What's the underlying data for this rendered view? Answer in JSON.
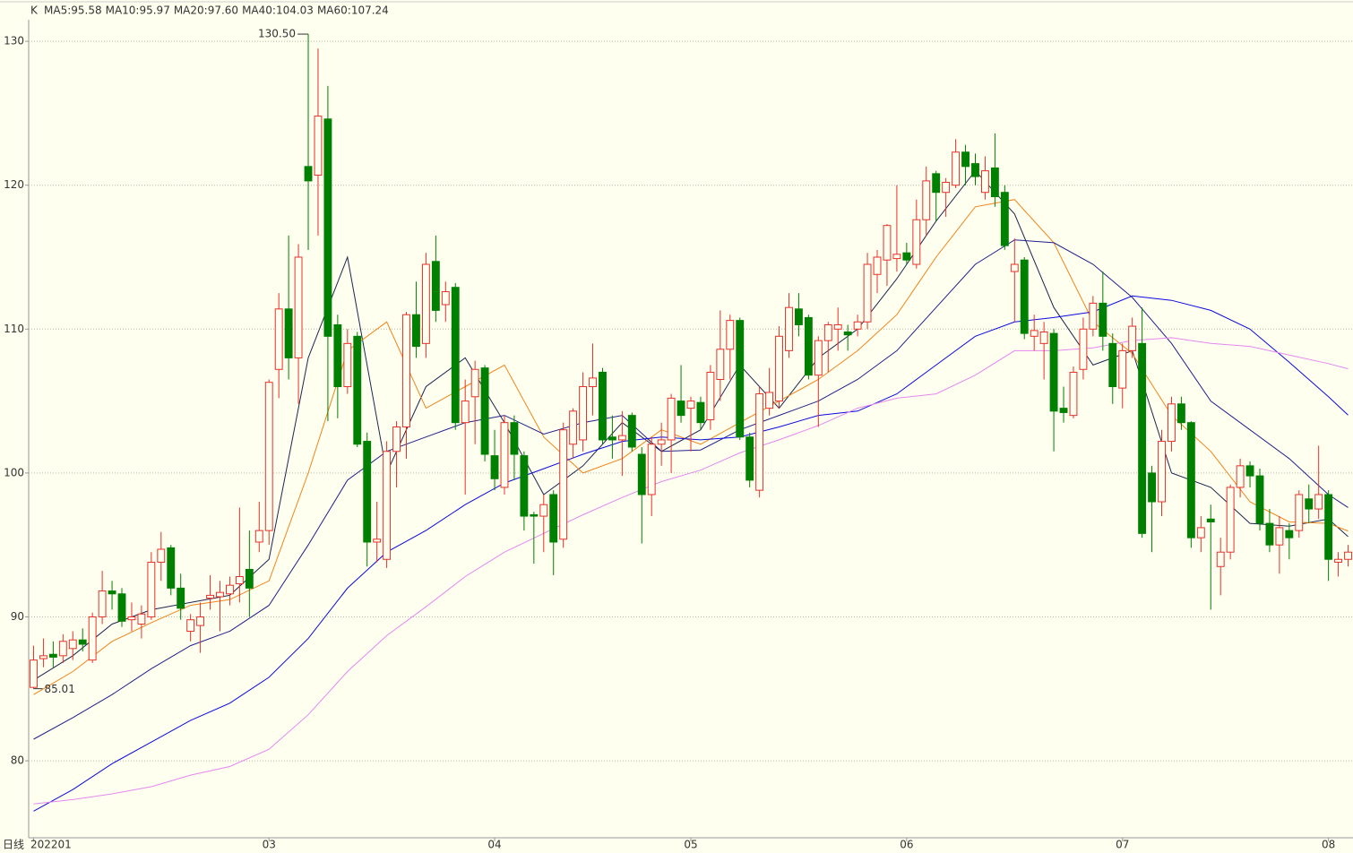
{
  "chart_data": {
    "type": "candlestick",
    "indicator_label": "K",
    "period_label": "日线",
    "up_color": "#e8302a",
    "down_color": "#008000",
    "ylim": [
      74.65,
      131.5
    ],
    "yticks": [
      80,
      90,
      100,
      110,
      120,
      130
    ],
    "grid": true,
    "xlim": [
      -0.5,
      134.5
    ],
    "xticks": [
      {
        "value": 0,
        "label": "202201"
      },
      {
        "value": 24,
        "label": "03"
      },
      {
        "value": 47,
        "label": "04"
      },
      {
        "value": 67,
        "label": "05"
      },
      {
        "value": 89,
        "label": "06"
      },
      {
        "value": 111,
        "label": "07"
      },
      {
        "value": 132,
        "label": "08"
      }
    ],
    "candles": [
      [
        85.1,
        88,
        85.01,
        87.0
      ],
      [
        87.1,
        88.5,
        86.5,
        87.3
      ],
      [
        87.4,
        88.3,
        86.5,
        87.2
      ],
      [
        87.3,
        88.8,
        86.8,
        88.3
      ],
      [
        87.8,
        89.0,
        87.0,
        88.4
      ],
      [
        88.4,
        89.2,
        87.6,
        88.1
      ],
      [
        87.0,
        90.3,
        86.8,
        90.0
      ],
      [
        90.0,
        93.2,
        89.5,
        91.8
      ],
      [
        91.8,
        92.5,
        90.5,
        91.6
      ],
      [
        91.6,
        92.0,
        89.3,
        89.7
      ],
      [
        89.8,
        91.0,
        89.0,
        90.0
      ],
      [
        89.5,
        90.8,
        88.5,
        90.2
      ],
      [
        90.0,
        94.5,
        89.8,
        93.8
      ],
      [
        93.8,
        95.9,
        92.5,
        94.7
      ],
      [
        94.8,
        95.0,
        91.5,
        92.0
      ],
      [
        92.0,
        93.0,
        89.8,
        90.6
      ],
      [
        89.0,
        90.2,
        88.3,
        89.8
      ],
      [
        89.4,
        91.0,
        87.5,
        90.0
      ],
      [
        91.3,
        92.9,
        90.5,
        91.5
      ],
      [
        91.4,
        92.5,
        89.0,
        91.7
      ],
      [
        91.6,
        92.8,
        90.8,
        92.2
      ],
      [
        92.3,
        97.6,
        91.0,
        92.8
      ],
      [
        93.3,
        96.0,
        90.0,
        92.0
      ],
      [
        95.2,
        98.0,
        94.5,
        96.0
      ],
      [
        96.0,
        106.5,
        95.0,
        106.3
      ],
      [
        107.2,
        112.5,
        105.2,
        111.4
      ],
      [
        111.4,
        116.5,
        106.5,
        108.0
      ],
      [
        108.0,
        115.9,
        104.8,
        115.0
      ],
      [
        121.3,
        130.5,
        115.5,
        120.3
      ],
      [
        120.7,
        129.5,
        116.5,
        124.8
      ],
      [
        124.6,
        126.9,
        103.6,
        109.5
      ],
      [
        110.3,
        111.0,
        103.8,
        106.0
      ],
      [
        106.0,
        110.0,
        105.5,
        109.0
      ],
      [
        109.5,
        109.8,
        101.8,
        102.0
      ],
      [
        102.2,
        102.8,
        93.5,
        95.2
      ],
      [
        95.2,
        98.0,
        93.8,
        95.4
      ],
      [
        94.0,
        102.2,
        93.4,
        101.5
      ],
      [
        101.5,
        103.6,
        99.0,
        103.2
      ],
      [
        103.2,
        111.2,
        101.0,
        111.0
      ],
      [
        111.0,
        113.3,
        108.0,
        108.8
      ],
      [
        109.0,
        115.3,
        108.0,
        114.5
      ],
      [
        114.7,
        116.5,
        110.5,
        111.3
      ],
      [
        111.7,
        113.3,
        110.5,
        112.6
      ],
      [
        112.9,
        113.2,
        103.0,
        103.5
      ],
      [
        103.5,
        106.5,
        98.5,
        105.0
      ],
      [
        105.3,
        107.8,
        102.0,
        107.2
      ],
      [
        107.3,
        107.5,
        100.8,
        101.3
      ],
      [
        101.2,
        103.0,
        98.8,
        99.6
      ],
      [
        99.0,
        104.0,
        98.5,
        103.5
      ],
      [
        103.5,
        104.0,
        99.5,
        101.3
      ],
      [
        101.2,
        101.5,
        96.0,
        97.0
      ],
      [
        97.1,
        97.3,
        93.7,
        97.0
      ],
      [
        97.0,
        98.5,
        94.5,
        97.8
      ],
      [
        98.5,
        98.8,
        92.9,
        95.2
      ],
      [
        95.4,
        103.5,
        94.8,
        103.0
      ],
      [
        102.0,
        104.5,
        101.0,
        104.3
      ],
      [
        102.3,
        107.0,
        101.5,
        106.0
      ],
      [
        106.0,
        109.0,
        104.0,
        106.6
      ],
      [
        107.0,
        107.3,
        102.0,
        102.3
      ],
      [
        102.5,
        104.0,
        101.0,
        102.3
      ],
      [
        102.3,
        104.3,
        99.8,
        102.6
      ],
      [
        104.0,
        104.2,
        101.5,
        101.8
      ],
      [
        101.3,
        101.8,
        95.1,
        98.5
      ],
      [
        98.5,
        102.5,
        97.0,
        102.0
      ],
      [
        102.0,
        103.5,
        100.5,
        102.3
      ],
      [
        102.3,
        105.5,
        100.0,
        105.2
      ],
      [
        105.0,
        107.5,
        103.5,
        104.0
      ],
      [
        104.5,
        105.3,
        101.5,
        105.0
      ],
      [
        104.9,
        105.3,
        103.0,
        103.5
      ],
      [
        103.7,
        107.5,
        103.0,
        107.0
      ],
      [
        106.5,
        111.3,
        105.0,
        108.6
      ],
      [
        108.6,
        111.0,
        106.5,
        110.6
      ],
      [
        110.6,
        110.8,
        102.3,
        102.5
      ],
      [
        102.5,
        102.8,
        99.0,
        99.5
      ],
      [
        98.8,
        106.0,
        98.3,
        105.5
      ],
      [
        104.5,
        107.3,
        104.0,
        105.6
      ],
      [
        105.0,
        110.2,
        104.5,
        109.5
      ],
      [
        108.5,
        112.5,
        108.0,
        111.5
      ],
      [
        111.4,
        112.5,
        109.5,
        110.3
      ],
      [
        110.8,
        111.0,
        106.5,
        106.8
      ],
      [
        106.8,
        109.5,
        103.2,
        109.2
      ],
      [
        109.2,
        110.5,
        107.0,
        110.3
      ],
      [
        110.0,
        111.5,
        108.5,
        110.3
      ],
      [
        109.8,
        110.3,
        108.5,
        109.6
      ],
      [
        110.0,
        111.0,
        109.5,
        110.5
      ],
      [
        110.5,
        115.3,
        110.0,
        114.5
      ],
      [
        113.8,
        115.5,
        112.5,
        115.0
      ],
      [
        114.8,
        117.3,
        113.0,
        117.2
      ],
      [
        114.9,
        120.0,
        114.0,
        115.2
      ],
      [
        115.3,
        116.0,
        114.5,
        114.8
      ],
      [
        114.5,
        119.0,
        114.2,
        117.6
      ],
      [
        117.6,
        121.3,
        116.5,
        120.3
      ],
      [
        120.8,
        121.0,
        117.5,
        119.5
      ],
      [
        119.5,
        120.5,
        117.8,
        120.2
      ],
      [
        120.0,
        123.2,
        119.8,
        122.3
      ],
      [
        122.3,
        122.8,
        120.0,
        121.3
      ],
      [
        121.5,
        122.2,
        120.0,
        120.6
      ],
      [
        119.5,
        122.0,
        119.0,
        121.0
      ],
      [
        121.2,
        123.6,
        118.5,
        119.2
      ],
      [
        119.5,
        120.0,
        115.5,
        115.8
      ],
      [
        114.0,
        116.3,
        110.5,
        114.5
      ],
      [
        114.8,
        115.0,
        109.3,
        109.7
      ],
      [
        109.5,
        111.0,
        108.5,
        109.9
      ],
      [
        109.0,
        110.5,
        106.5,
        109.8
      ],
      [
        109.7,
        110.0,
        101.5,
        104.3
      ],
      [
        104.5,
        106.0,
        103.5,
        104.2
      ],
      [
        104.0,
        107.4,
        103.8,
        107.0
      ],
      [
        107.2,
        110.8,
        106.5,
        110.0
      ],
      [
        110.0,
        112.3,
        109.5,
        111.8
      ],
      [
        111.8,
        114.0,
        108.5,
        109.5
      ],
      [
        109.0,
        109.7,
        104.8,
        106.0
      ],
      [
        105.9,
        109.0,
        104.5,
        108.5
      ],
      [
        108.5,
        110.8,
        108.0,
        110.2
      ],
      [
        109.0,
        111.5,
        95.5,
        95.8
      ],
      [
        100.0,
        100.5,
        94.5,
        98.0
      ],
      [
        98.0,
        103.0,
        97.0,
        102.2
      ],
      [
        102.2,
        105.3,
        101.5,
        104.8
      ],
      [
        104.8,
        105.3,
        103.0,
        103.5
      ],
      [
        103.5,
        103.6,
        94.8,
        95.5
      ],
      [
        95.5,
        97.0,
        94.5,
        96.2
      ],
      [
        96.8,
        97.8,
        90.5,
        96.6
      ],
      [
        93.5,
        95.5,
        91.5,
        94.5
      ],
      [
        94.5,
        99.2,
        94.0,
        99.0
      ],
      [
        99.0,
        101.0,
        98.3,
        100.5
      ],
      [
        100.5,
        100.8,
        99.0,
        99.8
      ],
      [
        99.8,
        100.3,
        96.0,
        96.5
      ],
      [
        96.5,
        97.5,
        94.5,
        95.0
      ],
      [
        95.0,
        97.0,
        93.0,
        96.2
      ],
      [
        96.0,
        96.5,
        94.0,
        95.5
      ],
      [
        96.0,
        98.8,
        95.5,
        98.5
      ],
      [
        98.2,
        99.2,
        96.5,
        97.5
      ],
      [
        97.5,
        101.9,
        96.8,
        98.5
      ],
      [
        98.5,
        98.8,
        92.5,
        94.0
      ],
      [
        93.8,
        94.5,
        92.8,
        94.0
      ],
      [
        94.0,
        95.0,
        93.5,
        94.5
      ]
    ],
    "annotations": [
      {
        "value": 130.5,
        "label": "130.50",
        "candle": 28
      },
      {
        "value": 85.01,
        "label": "85.01",
        "candle": 0
      }
    ],
    "x": [
      0,
      4,
      8,
      12,
      16,
      20,
      24,
      28,
      32,
      36,
      40,
      44,
      48,
      52,
      56,
      60,
      64,
      68,
      72,
      76,
      80,
      84,
      88,
      92,
      96,
      100,
      104,
      108,
      112,
      116,
      120,
      124,
      128,
      132,
      134
    ],
    "series": [
      {
        "name": "MA5:95.58",
        "color": "#1c2550",
        "values": [
          85.6,
          87.3,
          89.5,
          90.5,
          91.0,
          91.5,
          94.0,
          108,
          115,
          100,
          106,
          108,
          103.5,
          98.5,
          100.5,
          103.5,
          101.5,
          103,
          107.5,
          104.5,
          108,
          110,
          113.5,
          117.5,
          121,
          118,
          111.5,
          107.5,
          108.5,
          100,
          99,
          96.5,
          96.3,
          96.8,
          95.58
        ]
      },
      {
        "name": "MA10:95.97",
        "color": "#f0841a",
        "values": [
          84.6,
          86.2,
          88.3,
          89.6,
          90.8,
          91.2,
          92.5,
          100,
          108.5,
          110.5,
          104.5,
          106,
          107.5,
          102.5,
          100,
          101,
          103,
          102,
          103.5,
          105,
          106.5,
          108.5,
          111,
          115,
          118.5,
          119,
          116,
          110.5,
          108.3,
          104,
          101.5,
          98,
          96.6,
          96.5,
          95.97
        ]
      },
      {
        "name": "MA20:97.60",
        "color": "#20208a",
        "values": [
          81.5,
          83.0,
          84.6,
          86.4,
          88.0,
          89.0,
          90.8,
          95,
          99.5,
          101.5,
          102.5,
          103.5,
          104.0,
          102.7,
          103.5,
          104.0,
          101.5,
          101.6,
          103.0,
          104.0,
          105.0,
          106.5,
          108.5,
          111.5,
          114.5,
          116.2,
          116.0,
          114.5,
          112.2,
          109.0,
          105.0,
          103.0,
          101.0,
          98.5,
          97.6
        ]
      },
      {
        "name": "MA40:104.03",
        "color": "#0a0ae0",
        "values": [
          76.5,
          78.0,
          79.8,
          81.3,
          82.8,
          84.0,
          85.8,
          88.5,
          92.0,
          94.5,
          96.0,
          97.8,
          99.3,
          100.3,
          101.3,
          102.2,
          102.5,
          102.3,
          102.5,
          103.2,
          104.0,
          104.3,
          105.5,
          107.5,
          109.5,
          110.5,
          110.8,
          111.2,
          112.3,
          112.0,
          111.3,
          110.0,
          107.7,
          105.3,
          104.03
        ]
      },
      {
        "name": "MA60:107.24",
        "color": "#e488ee",
        "values": [
          77.0,
          77.3,
          77.7,
          78.2,
          79.0,
          79.6,
          80.8,
          83.2,
          86.2,
          88.7,
          90.7,
          92.8,
          94.5,
          95.8,
          97.1,
          98.3,
          99.4,
          100.2,
          101.4,
          102.3,
          103.3,
          104.5,
          105.2,
          105.5,
          106.8,
          108.5,
          108.5,
          108.7,
          109.2,
          109.4,
          109.0,
          108.8,
          108.2,
          107.6,
          107.24
        ]
      }
    ]
  }
}
